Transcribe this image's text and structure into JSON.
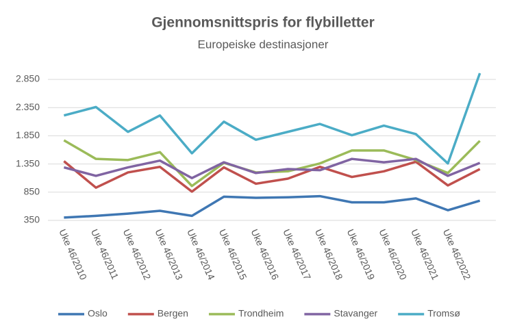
{
  "chart_data": {
    "type": "line",
    "title": "Gjennomsnittspris for flybilletter",
    "subtitle": "Europeiske destinasjoner",
    "categories": [
      "Uke 46/2010",
      "Uke 46/2011",
      "Uke 46/2012",
      "Uke 46/2013",
      "Uke 46/2014",
      "Uke 46/2015",
      "Uke 46/2016",
      "Uke 46/2017",
      "Uke 46/2018",
      "Uke 46/2019",
      "Uke 46/2020",
      "Uke 46/2021",
      "Uke 46/2022",
      null
    ],
    "series": [
      {
        "name": "Oslo",
        "color": "#3f77b3",
        "values": [
          400,
          430,
          470,
          520,
          430,
          770,
          750,
          760,
          780,
          670,
          670,
          740,
          530,
          700
        ]
      },
      {
        "name": "Bergen",
        "color": "#c0504d",
        "values": [
          1400,
          930,
          1200,
          1300,
          860,
          1290,
          1000,
          1090,
          1300,
          1120,
          1220,
          1390,
          970,
          1260
        ]
      },
      {
        "name": "Trondheim",
        "color": "#9bbb59",
        "values": [
          1770,
          1440,
          1420,
          1560,
          960,
          1370,
          1200,
          1220,
          1360,
          1590,
          1590,
          1420,
          1190,
          1760
        ]
      },
      {
        "name": "Stavanger",
        "color": "#8064a2",
        "values": [
          1290,
          1140,
          1290,
          1410,
          1100,
          1380,
          1190,
          1260,
          1240,
          1440,
          1380,
          1440,
          1140,
          1370
        ]
      },
      {
        "name": "Tromsø",
        "color": "#4bacc6",
        "values": [
          2210,
          2360,
          1920,
          2210,
          1540,
          2100,
          1780,
          1920,
          2060,
          1860,
          2030,
          1880,
          1360,
          2960
        ]
      }
    ],
    "ylim": [
      350,
      2850
    ],
    "yticks": [
      350,
      850,
      {
        "value": 1350,
        "label": "1.350"
      },
      {
        "value": 1850,
        "label": "1.850"
      },
      {
        "value": 2350,
        "label": "2.350"
      },
      {
        "value": 2850,
        "label": "2.850"
      }
    ],
    "grid": true,
    "legend": "bottom"
  }
}
